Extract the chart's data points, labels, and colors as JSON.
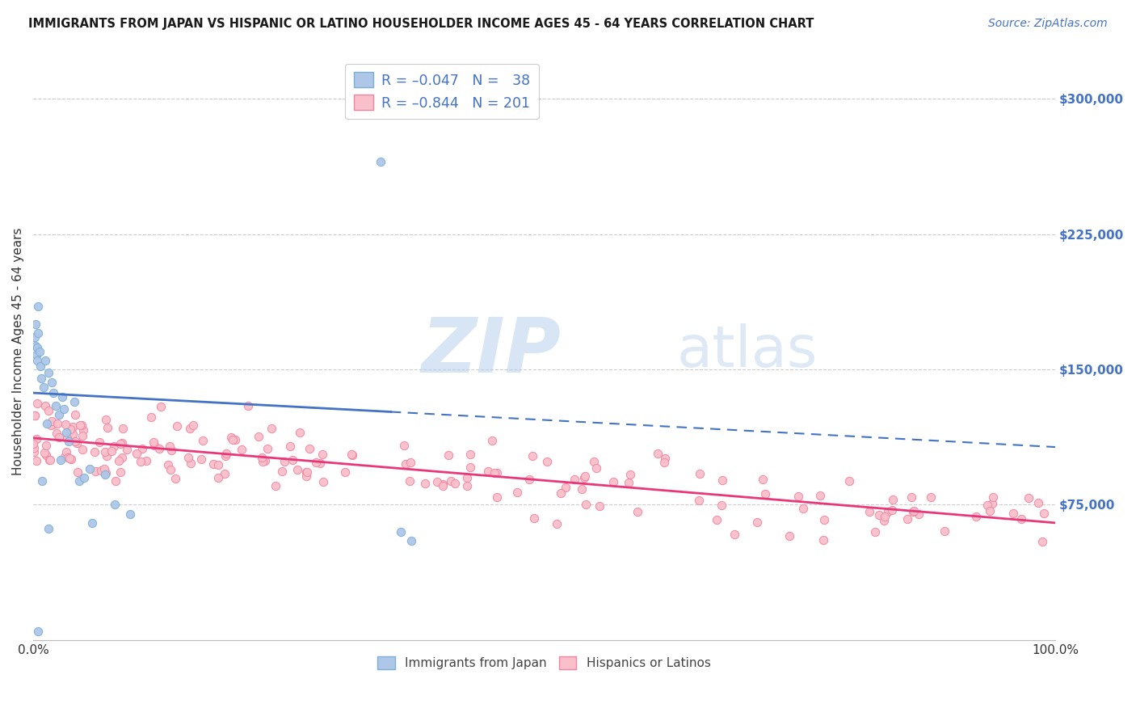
{
  "title": "IMMIGRANTS FROM JAPAN VS HISPANIC OR LATINO HOUSEHOLDER INCOME AGES 45 - 64 YEARS CORRELATION CHART",
  "source": "Source: ZipAtlas.com",
  "ylabel": "Householder Income Ages 45 - 64 years",
  "xlim": [
    0,
    100
  ],
  "ylim": [
    0,
    320000
  ],
  "watermark_zip": "ZIP",
  "watermark_atlas": "atlas",
  "blue_scatter_color": "#aec6e8",
  "blue_scatter_edge": "#7bafd4",
  "pink_scatter_color": "#f9bfca",
  "pink_scatter_edge": "#f086a0",
  "blue_line_color": "#4472c4",
  "pink_line_color": "#e8387a",
  "tick_label_color": "#4472c4",
  "title_color": "#1a1a1a",
  "source_color": "#4472c4",
  "grid_color": "#cccccc",
  "legend_edge_color": "#cccccc",
  "blue_R": "-0.047",
  "blue_N": "38",
  "pink_R": "-0.844",
  "pink_N": "201",
  "legend_label_color": "#4472c4",
  "bottom_label_color": "#444444"
}
